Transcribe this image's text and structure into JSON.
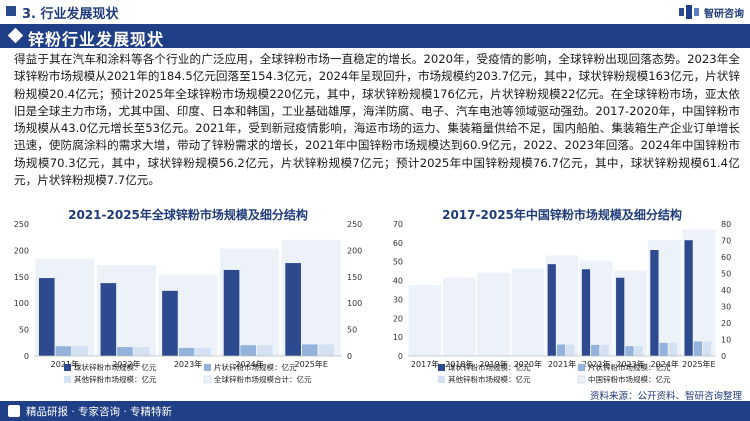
{
  "header": {
    "section_title": "3. 行业发展现状",
    "brand_name": "智研咨询"
  },
  "title_bar": {
    "title": "锌粉行业发展现状"
  },
  "body": {
    "paragraph": "得益于其在汽车和涂料等各个行业的广泛应用，全球锌粉市场一直稳定的增长。2020年，受疫情的影响，全球锌粉出现回落态势。2023年全球锌粉市场规模从2021年的184.5亿元回落至154.3亿元，2024年呈现回升，市场规模约203.7亿元，其中，球状锌粉规模163亿元，片状锌粉规模20.4亿元；预计2025年全球锌粉市场规模220亿元，其中，球状锌粉规模176亿元，片状锌粉规模22亿元。在全球锌粉市场，亚太依旧是全球主力市场，尤其中国、印度、日本和韩国，工业基础雄厚，海洋防腐、电子、汽车电池等领域驱动强劲。2017-2020年，中国锌粉市场规模从43.0亿元增长至53亿元。2021年，受到新冠疫情影响，海运市场的运力、集装箱量供给不足，国内船舶、集装箱生产企业订单增长迅速，使防腐涂料的需求大增，带动了锌粉需求的增长，2021年中国锌粉市场规模达到60.9亿元，2022、2023年回落。2024年中国锌粉市场规模70.3亿元，其中，球状锌粉规模56.2亿元，片状锌粉规模7亿元；预计2025年中国锌粉规模76.7亿元，其中，球状锌粉规模61.4亿元，片状锌粉规模7.7亿元。"
  },
  "charts": {
    "left_title": "2021-2025年全球锌粉市场规模及细分结构",
    "right_title": "2017-2025年中国锌粉市场规模及细分结构"
  },
  "footer": {
    "tagline": "精品研报 · 专家咨询 · 专精特新",
    "source": "资料来源：公开资料、智研咨询整理"
  },
  "colors": {
    "navy": "#1f3f86",
    "ball": "#2d4a8f",
    "flake": "#93b3dd",
    "other": "#d3e1f2",
    "total": "#edf2f9"
  },
  "chart_data": [
    {
      "type": "bar",
      "title": "2021-2025年全球锌粉市场规模及细分结构",
      "categories": [
        "2021年",
        "2022年",
        "2023年",
        "2024年",
        "2025年E"
      ],
      "ylim_left": [
        0,
        250
      ],
      "yticks_left": [
        0,
        50,
        100,
        150,
        200,
        250
      ],
      "ylim_right": [
        0,
        250
      ],
      "yticks_right": [
        0,
        50,
        100,
        150,
        200,
        250
      ],
      "grid": false,
      "legend_position": "bottom",
      "series": [
        {
          "name": "球状锌粉市场规模：亿元",
          "values": [
            147.6,
            138,
            123.4,
            163,
            176
          ],
          "color": "#2d4a8f"
        },
        {
          "name": "片状锌粉市场规模：亿元",
          "values": [
            18.5,
            17,
            15.4,
            20.4,
            22
          ],
          "color": "#93b3dd"
        },
        {
          "name": "其他锌粉市场规模：亿元",
          "values": [
            18.4,
            17,
            15.5,
            20.3,
            22
          ],
          "color": "#d3e1f2"
        },
        {
          "name": "全球锌粉市场规模合计：亿元",
          "values": [
            184.5,
            172,
            154.3,
            203.7,
            220
          ],
          "color": "#edf2f9"
        }
      ]
    },
    {
      "type": "bar",
      "title": "2017-2025年中国锌粉市场规模及细分结构",
      "categories": [
        "2017年",
        "2018年",
        "2019年",
        "2020年",
        "2021年",
        "2022年",
        "2023年",
        "2024年",
        "2025年E"
      ],
      "ylim_left": [
        0,
        70
      ],
      "yticks_left": [
        0,
        10,
        20,
        30,
        40,
        50,
        60,
        70
      ],
      "ylim_right": [
        0,
        80
      ],
      "yticks_right": [
        0,
        10,
        20,
        30,
        40,
        50,
        60,
        70,
        80
      ],
      "grid": false,
      "legend_position": "bottom",
      "series": [
        {
          "name": "球状锌粉市场规模：亿元",
          "axis": "left",
          "values": [
            null,
            null,
            null,
            null,
            48.7,
            46,
            41.5,
            56.2,
            61.4
          ],
          "color": "#2d4a8f"
        },
        {
          "name": "片状锌粉市场规模：亿元",
          "axis": "left",
          "values": [
            null,
            null,
            null,
            null,
            6.1,
            5.9,
            5.2,
            7,
            7.7
          ],
          "color": "#93b3dd"
        },
        {
          "name": "其他锌粉市场规模：亿元",
          "axis": "left",
          "values": [
            null,
            null,
            null,
            null,
            6.1,
            5.9,
            5.2,
            7.1,
            7.6
          ],
          "color": "#d3e1f2"
        },
        {
          "name": "中国锌粉市场规模：亿元",
          "axis": "right",
          "values": [
            43.0,
            47.5,
            50.5,
            53,
            60.9,
            57.8,
            51.9,
            70.3,
            76.7
          ],
          "color": "#edf2f9"
        }
      ]
    }
  ]
}
